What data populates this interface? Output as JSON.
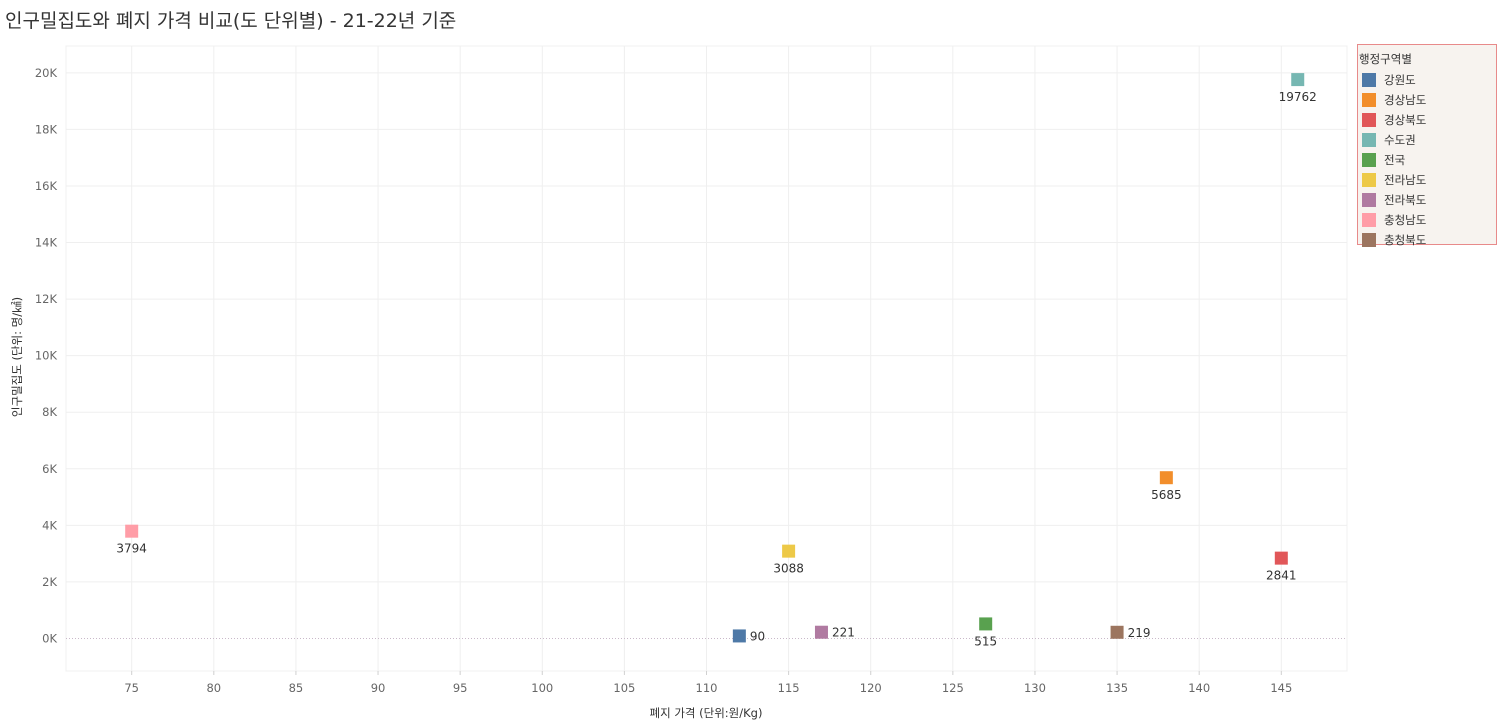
{
  "title": "인구밀집도와 폐지 가격 비교(도 단위별) - 21-22년 기준",
  "chart_data": {
    "type": "scatter",
    "title": "인구밀집도와 폐지 가격 비교(도 단위별) - 21-22년 기준",
    "xlabel": "폐지 가격 (단위:원/Kg)",
    "ylabel": "인구밀집도 (단위: 명/㎢)",
    "xlim": [
      71,
      149
    ],
    "ylim": [
      -1150,
      20950
    ],
    "x_ticks": [
      75,
      80,
      85,
      90,
      95,
      100,
      105,
      110,
      115,
      120,
      125,
      130,
      135,
      140,
      145
    ],
    "y_ticks": [
      0,
      2000,
      4000,
      6000,
      8000,
      10000,
      12000,
      14000,
      16000,
      18000,
      20000
    ],
    "y_tick_labels": [
      "0K",
      "2K",
      "4K",
      "6K",
      "8K",
      "10K",
      "12K",
      "14K",
      "16K",
      "18K",
      "20K"
    ],
    "grid": true,
    "legend": {
      "title": "행정구역별",
      "placement": "right"
    },
    "points": [
      {
        "name": "강원도",
        "x": 112,
        "y": 90,
        "label": "90",
        "color": "#4e79a7"
      },
      {
        "name": "경상남도",
        "x": 138,
        "y": 5685,
        "label": "5685",
        "color": "#f28e2b"
      },
      {
        "name": "경상북도",
        "x": 145,
        "y": 2841,
        "label": "2841",
        "color": "#e15759"
      },
      {
        "name": "수도권",
        "x": 146,
        "y": 19762,
        "label": "19762",
        "color": "#76b7b2"
      },
      {
        "name": "전국",
        "x": 127,
        "y": 515,
        "label": "515",
        "color": "#59a14f"
      },
      {
        "name": "전라남도",
        "x": 115,
        "y": 3088,
        "label": "3088",
        "color": "#edc948"
      },
      {
        "name": "전라북도",
        "x": 117,
        "y": 221,
        "label": "221",
        "color": "#b07aa1"
      },
      {
        "name": "충청남도",
        "x": 75,
        "y": 3794,
        "label": "3794",
        "color": "#ff9da7"
      },
      {
        "name": "충청북도",
        "x": 135,
        "y": 219,
        "label": "219",
        "color": "#9c755f"
      }
    ]
  }
}
